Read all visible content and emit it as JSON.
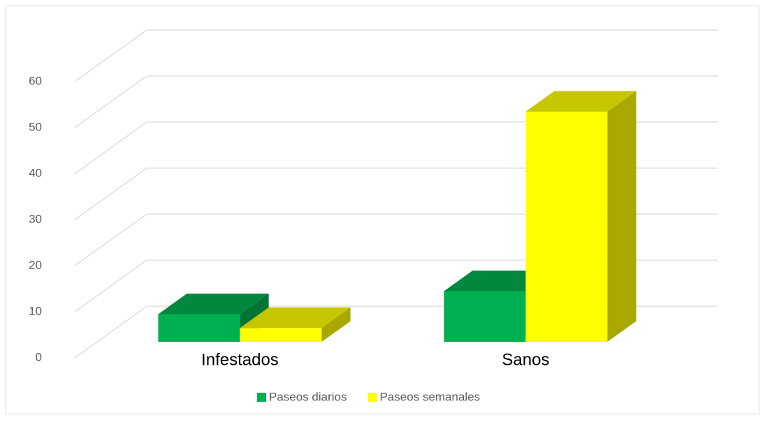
{
  "chart_data": {
    "type": "bar3d",
    "categories": [
      "Infestados",
      "Sanos"
    ],
    "series": [
      {
        "name": "Paseos diarios",
        "color": "#00b050",
        "values": [
          6,
          11
        ]
      },
      {
        "name": "Paseos semanales",
        "color": "#ffff00",
        "values": [
          3,
          50
        ]
      }
    ],
    "ylim": [
      0,
      60
    ],
    "yticks": [
      0,
      10,
      20,
      30,
      40,
      50,
      60
    ],
    "grid": true,
    "legend": "bottom"
  }
}
